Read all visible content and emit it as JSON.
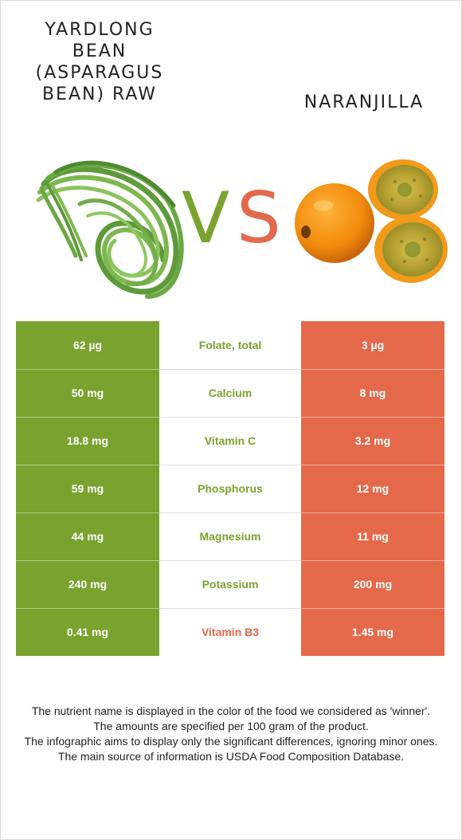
{
  "titles": {
    "left": "YARDLONG BEAN (ASPARAGUS BEAN) RAW",
    "right": "NARANJILLA"
  },
  "vs": {
    "v": "V",
    "s": "S"
  },
  "colors": {
    "green": "#7aa22f",
    "orange": "#e3694a"
  },
  "rows": [
    {
      "left": "62 µg",
      "nutrient": "Folate, total",
      "right": "3 µg",
      "winner": "left"
    },
    {
      "left": "50 mg",
      "nutrient": "Calcium",
      "right": "8 mg",
      "winner": "left"
    },
    {
      "left": "18.8 mg",
      "nutrient": "Vitamin C",
      "right": "3.2 mg",
      "winner": "left"
    },
    {
      "left": "59 mg",
      "nutrient": "Phosphorus",
      "right": "12 mg",
      "winner": "left"
    },
    {
      "left": "44 mg",
      "nutrient": "Magnesium",
      "right": "11 mg",
      "winner": "left"
    },
    {
      "left": "240 mg",
      "nutrient": "Potassium",
      "right": "200 mg",
      "winner": "left"
    },
    {
      "left": "0.41 mg",
      "nutrient": "Vitamin B3",
      "right": "1.45 mg",
      "winner": "right"
    }
  ],
  "footnote": [
    "The nutrient name is displayed in the color of the food we considered as 'winner'.",
    "The amounts are specified per 100 gram of the product.",
    "The infographic aims to display only the significant differences, ignoring minor ones.",
    "The main source of information is USDA Food Composition Database."
  ]
}
